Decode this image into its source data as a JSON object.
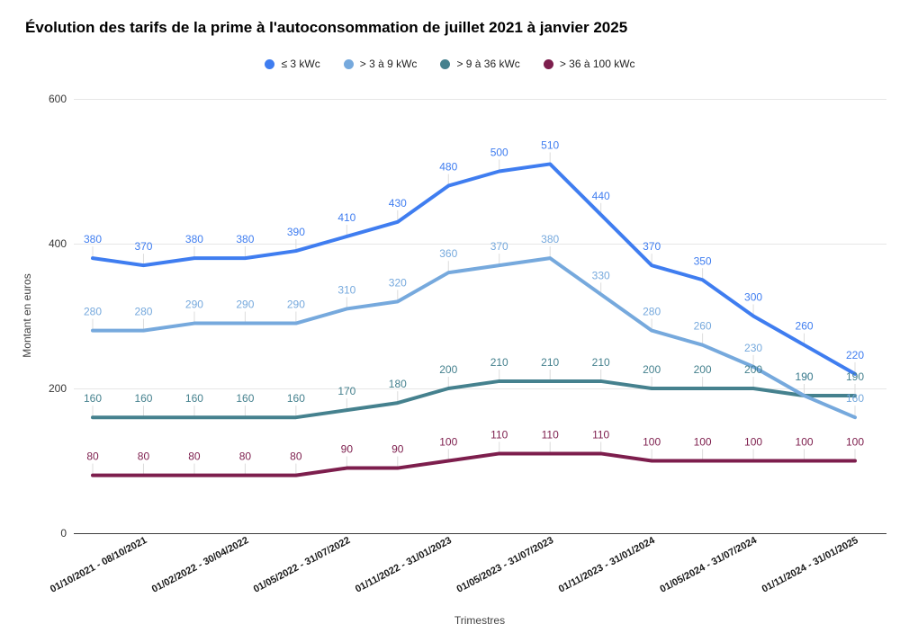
{
  "title": "Évolution des tarifs de la prime à l'autoconsommation de juillet 2021 à janvier 2025",
  "chart_data": {
    "type": "line",
    "title": "Évolution des tarifs de la prime à l'autoconsommation de juillet 2021 à janvier 2025",
    "xlabel": "Trimestres",
    "ylabel": "Montant en euros",
    "ylim": [
      0,
      600
    ],
    "yticks": [
      0,
      200,
      400,
      600
    ],
    "grid": true,
    "legend_position": "top",
    "point_count": 16,
    "x_tick_labels": [
      "01/10/2021 - 08/10/2021",
      "01/02/2022 - 30/04/2022",
      "01/05/2022 - 31/07/2022",
      "01/11/2022 - 31/01/2023",
      "01/05/2023 - 31/07/2023",
      "01/11/2023 - 31/01/2024",
      "01/05/2024 - 31/07/2024",
      "01/11/2024 - 31/01/2025"
    ],
    "x_tick_point_indices": [
      0,
      2,
      4,
      6,
      8,
      10,
      12,
      14
    ],
    "series": [
      {
        "name": "≤ 3 kWc",
        "color": "#3f7df0",
        "values": [
          380,
          370,
          380,
          380,
          390,
          410,
          430,
          480,
          500,
          510,
          440,
          370,
          350,
          300,
          260,
          220
        ]
      },
      {
        "name": "> 3 à 9 kWc",
        "color": "#76a9dd",
        "values": [
          280,
          280,
          290,
          290,
          290,
          310,
          320,
          360,
          370,
          380,
          330,
          280,
          260,
          230,
          190,
          160
        ]
      },
      {
        "name": "> 9 à 36 kWc",
        "color": "#45818e",
        "values": [
          160,
          160,
          160,
          160,
          160,
          170,
          180,
          200,
          210,
          210,
          210,
          200,
          200,
          200,
          190,
          190
        ]
      },
      {
        "name": "> 36 à 100 kWc",
        "color": "#7d1e4d",
        "values": [
          80,
          80,
          80,
          80,
          80,
          90,
          90,
          100,
          110,
          110,
          110,
          100,
          100,
          100,
          100,
          100
        ]
      }
    ]
  }
}
